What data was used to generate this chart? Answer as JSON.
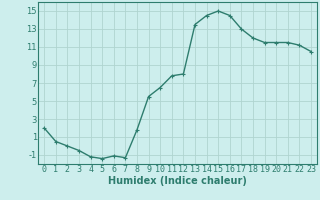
{
  "x": [
    0,
    1,
    2,
    3,
    4,
    5,
    6,
    7,
    8,
    9,
    10,
    11,
    12,
    13,
    14,
    15,
    16,
    17,
    18,
    19,
    20,
    21,
    22,
    23
  ],
  "y": [
    2.0,
    0.5,
    0.0,
    -0.5,
    -1.2,
    -1.4,
    -1.1,
    -1.3,
    1.8,
    5.5,
    6.5,
    7.8,
    8.0,
    13.5,
    14.5,
    15.0,
    14.5,
    13.0,
    12.0,
    11.5,
    11.5,
    11.5,
    11.2,
    10.5
  ],
  "line_color": "#2e7d6e",
  "marker": "+",
  "marker_size": 3,
  "marker_color": "#2e7d6e",
  "bg_color": "#cdeeed",
  "grid_color": "#b0d4d0",
  "xlabel": "Humidex (Indice chaleur)",
  "xlabel_fontsize": 7,
  "xlabel_color": "#2e7d6e",
  "tick_color": "#2e7d6e",
  "tick_fontsize": 6,
  "ylim": [
    -2,
    16
  ],
  "xlim": [
    -0.5,
    23.5
  ],
  "yticks": [
    -1,
    1,
    3,
    5,
    7,
    9,
    11,
    13,
    15
  ],
  "xticks": [
    0,
    1,
    2,
    3,
    4,
    5,
    6,
    7,
    8,
    9,
    10,
    11,
    12,
    13,
    14,
    15,
    16,
    17,
    18,
    19,
    20,
    21,
    22,
    23
  ],
  "xtick_labels": [
    "0",
    "1",
    "2",
    "3",
    "4",
    "5",
    "6",
    "7",
    "8",
    "9",
    "10",
    "11",
    "12",
    "13",
    "14",
    "15",
    "16",
    "17",
    "18",
    "19",
    "20",
    "21",
    "22",
    "23"
  ],
  "linewidth": 1.0,
  "spine_color": "#2e7d6e"
}
